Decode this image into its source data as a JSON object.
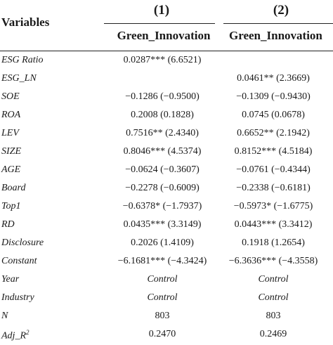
{
  "header": {
    "variables_label": "Variables",
    "col1_number": "(1)",
    "col2_number": "(2)",
    "col1_name": "Green_Innovation",
    "col2_name": "Green_Innovation"
  },
  "rows": [
    {
      "label": "ESG Ratio",
      "v1": "0.0287*** (6.6521)",
      "v2": ""
    },
    {
      "label": "ESG_LN",
      "v1": "",
      "v2": "0.0461** (2.3669)"
    },
    {
      "label": "SOE",
      "v1": "−0.1286 (−0.9500)",
      "v2": "−0.1309 (−0.9430)"
    },
    {
      "label": "ROA",
      "v1": "0.2008 (0.1828)",
      "v2": "0.0745 (0.0678)"
    },
    {
      "label": "LEV",
      "v1": "0.7516** (2.4340)",
      "v2": "0.6652** (2.1942)"
    },
    {
      "label": "SIZE",
      "v1": "0.8046*** (4.5374)",
      "v2": "0.8152*** (4.5184)"
    },
    {
      "label": "AGE",
      "v1": "−0.0624 (−0.3607)",
      "v2": "−0.0761 (−0.4344)"
    },
    {
      "label": "Board",
      "v1": "−0.2278 (−0.6009)",
      "v2": "−0.2338 (−0.6181)"
    },
    {
      "label": "Top1",
      "v1": "−0.6378* (−1.7937)",
      "v2": "−0.5973* (−1.6775)"
    },
    {
      "label": "RD",
      "v1": "0.0435*** (3.3149)",
      "v2": "0.0443*** (3.3412)"
    },
    {
      "label": "Disclosure",
      "v1": "0.2026 (1.4109)",
      "v2": "0.1918 (1.2654)"
    },
    {
      "label": "Constant",
      "v1": "−6.1681*** (−4.3424)",
      "v2": "−6.3636*** (−4.3558)"
    },
    {
      "label": "Year",
      "v1": "Control",
      "v2": "Control"
    },
    {
      "label": "Industry",
      "v1": "Control",
      "v2": "Control"
    },
    {
      "label": "N",
      "v1": "803",
      "v2": "803"
    },
    {
      "label": "Adj_R",
      "label_sup": "2",
      "v1": "0.2470",
      "v2": "0.2469"
    }
  ]
}
